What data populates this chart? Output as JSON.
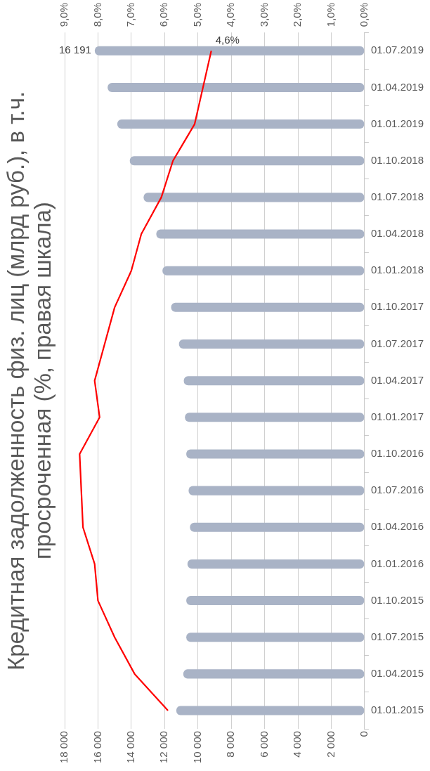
{
  "chart_data": {
    "type": "bar",
    "orientation": "horizontal",
    "title": "Кредитная задолженность физ. лиц (млрд руб.), в т.ч. просроченная (%, правая шкала)",
    "categories": [
      "01.07.2019",
      "01.04.2019",
      "01.01.2019",
      "01.10.2018",
      "01.07.2018",
      "01.04.2018",
      "01.01.2018",
      "01.10.2017",
      "01.07.2017",
      "01.04.2017",
      "01.01.2017",
      "01.10.2016",
      "01.07.2016",
      "01.04.2016",
      "01.01.2016",
      "01.10.2015",
      "01.07.2015",
      "01.04.2015",
      "01.01.2015"
    ],
    "series": [
      {
        "color": "#a9b3c6",
        "values": [
          16191,
          15420,
          14840,
          14090,
          13260,
          12500,
          12130,
          11610,
          11140,
          10850,
          10780,
          10700,
          10560,
          10480,
          10630,
          10700,
          10700,
          10880,
          11300
        ],
        "value_labels": [
          "16 191",
          null,
          null,
          null,
          null,
          null,
          null,
          null,
          null,
          null,
          null,
          null,
          null,
          null,
          null,
          null,
          null,
          null,
          null
        ]
      },
      {
        "type": "line",
        "axis": "x2",
        "color": "#ff0000",
        "values": [
          4.6,
          4.85,
          5.1,
          5.75,
          6.1,
          6.7,
          7.0,
          7.5,
          7.8,
          8.1,
          7.95,
          8.55,
          8.5,
          8.45,
          8.1,
          8.0,
          7.5,
          6.9,
          5.9
        ],
        "value_labels": [
          "4,6%",
          null,
          null,
          null,
          null,
          null,
          null,
          null,
          null,
          null,
          null,
          null,
          null,
          null,
          null,
          null,
          null,
          null,
          null
        ]
      }
    ],
    "xlim": [
      18000,
      0
    ],
    "xticks": [
      {
        "value": 18000,
        "label": "18 000"
      },
      {
        "value": 16000,
        "label": "16 000"
      },
      {
        "value": 14000,
        "label": "14 000"
      },
      {
        "value": 12000,
        "label": "12 000"
      },
      {
        "value": 10000,
        "label": "10 000"
      },
      {
        "value": 8000,
        "label": "8 000"
      },
      {
        "value": 6000,
        "label": "6 000"
      },
      {
        "value": 4000,
        "label": "4 000"
      },
      {
        "value": 2000,
        "label": "2 000"
      },
      0
    ],
    "x2lim": [
      9,
      0
    ],
    "x2ticks": [
      {
        "value": 9,
        "label": "9,0%"
      },
      {
        "value": 8,
        "label": "8,0%"
      },
      {
        "value": 7,
        "label": "7,0%"
      },
      {
        "value": 6,
        "label": "6,0%"
      },
      {
        "value": 5,
        "label": "5,0%"
      },
      {
        "value": 4,
        "label": "4,0%"
      },
      {
        "value": 3,
        "label": "3,0%"
      },
      {
        "value": 2,
        "label": "2,0%"
      },
      {
        "value": 1,
        "label": "1,0%"
      },
      {
        "value": 0,
        "label": "0,0%"
      }
    ],
    "grid": true,
    "legend": false,
    "marker": "none",
    "line_style": "solid"
  }
}
